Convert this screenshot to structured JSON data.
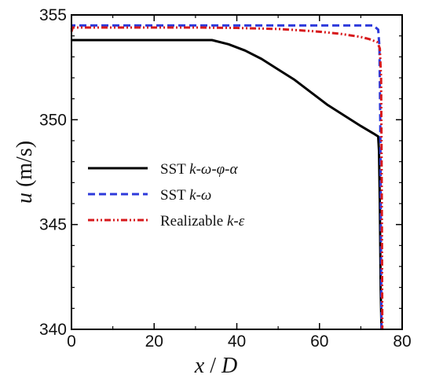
{
  "chart_data": {
    "type": "line",
    "xlabel": "x / D",
    "ylabel": "u (m/s)",
    "xlim": [
      0,
      80
    ],
    "ylim": [
      340,
      355
    ],
    "xticks": [
      0,
      20,
      40,
      60,
      80
    ],
    "yticks": [
      340,
      345,
      350,
      355
    ],
    "grid": false,
    "legend_position": "left",
    "series": [
      {
        "name": "SST k-ω-φ-α",
        "legend_plain": "SST ",
        "legend_italic": "k-ω-φ-α",
        "color": "#000000",
        "style": "solid",
        "points": [
          [
            0,
            353.8
          ],
          [
            10,
            353.8
          ],
          [
            20,
            353.8
          ],
          [
            30,
            353.8
          ],
          [
            34,
            353.8
          ],
          [
            38,
            353.6
          ],
          [
            42,
            353.3
          ],
          [
            46,
            352.9
          ],
          [
            50,
            352.4
          ],
          [
            54,
            351.9
          ],
          [
            58,
            351.3
          ],
          [
            62,
            350.7
          ],
          [
            66,
            350.2
          ],
          [
            70,
            349.7
          ],
          [
            73,
            349.35
          ],
          [
            74.2,
            349.2
          ],
          [
            74.4,
            348.5
          ],
          [
            74.6,
            346.0
          ],
          [
            74.8,
            342.0
          ],
          [
            75,
            340
          ]
        ]
      },
      {
        "name": "SST k-ω",
        "legend_plain": "SST ",
        "legend_italic": "k-ω",
        "color": "#2e3adb",
        "style": "dashed",
        "points": [
          [
            0,
            354.3
          ],
          [
            0.3,
            354.5
          ],
          [
            10,
            354.5
          ],
          [
            20,
            354.5
          ],
          [
            30,
            354.5
          ],
          [
            40,
            354.5
          ],
          [
            50,
            354.5
          ],
          [
            60,
            354.5
          ],
          [
            70,
            354.5
          ],
          [
            73,
            354.5
          ],
          [
            74.2,
            354.3
          ],
          [
            74.5,
            353.5
          ],
          [
            74.7,
            350.0
          ],
          [
            74.85,
            345.0
          ],
          [
            75,
            340
          ]
        ]
      },
      {
        "name": "Realizable k-ε",
        "legend_plain": "Realizable  ",
        "legend_italic": "k-ε",
        "color": "#d7191c",
        "style": "dashdotdot",
        "points": [
          [
            0,
            354.2
          ],
          [
            0.3,
            354.4
          ],
          [
            10,
            354.4
          ],
          [
            20,
            354.4
          ],
          [
            30,
            354.4
          ],
          [
            40,
            354.38
          ],
          [
            50,
            354.33
          ],
          [
            55,
            354.27
          ],
          [
            60,
            354.2
          ],
          [
            65,
            354.1
          ],
          [
            70,
            353.95
          ],
          [
            72,
            353.85
          ],
          [
            74,
            353.7
          ],
          [
            74.6,
            353.4
          ],
          [
            74.9,
            352.0
          ],
          [
            75,
            349.0
          ],
          [
            75.1,
            345.0
          ],
          [
            75.2,
            340
          ]
        ]
      }
    ]
  }
}
